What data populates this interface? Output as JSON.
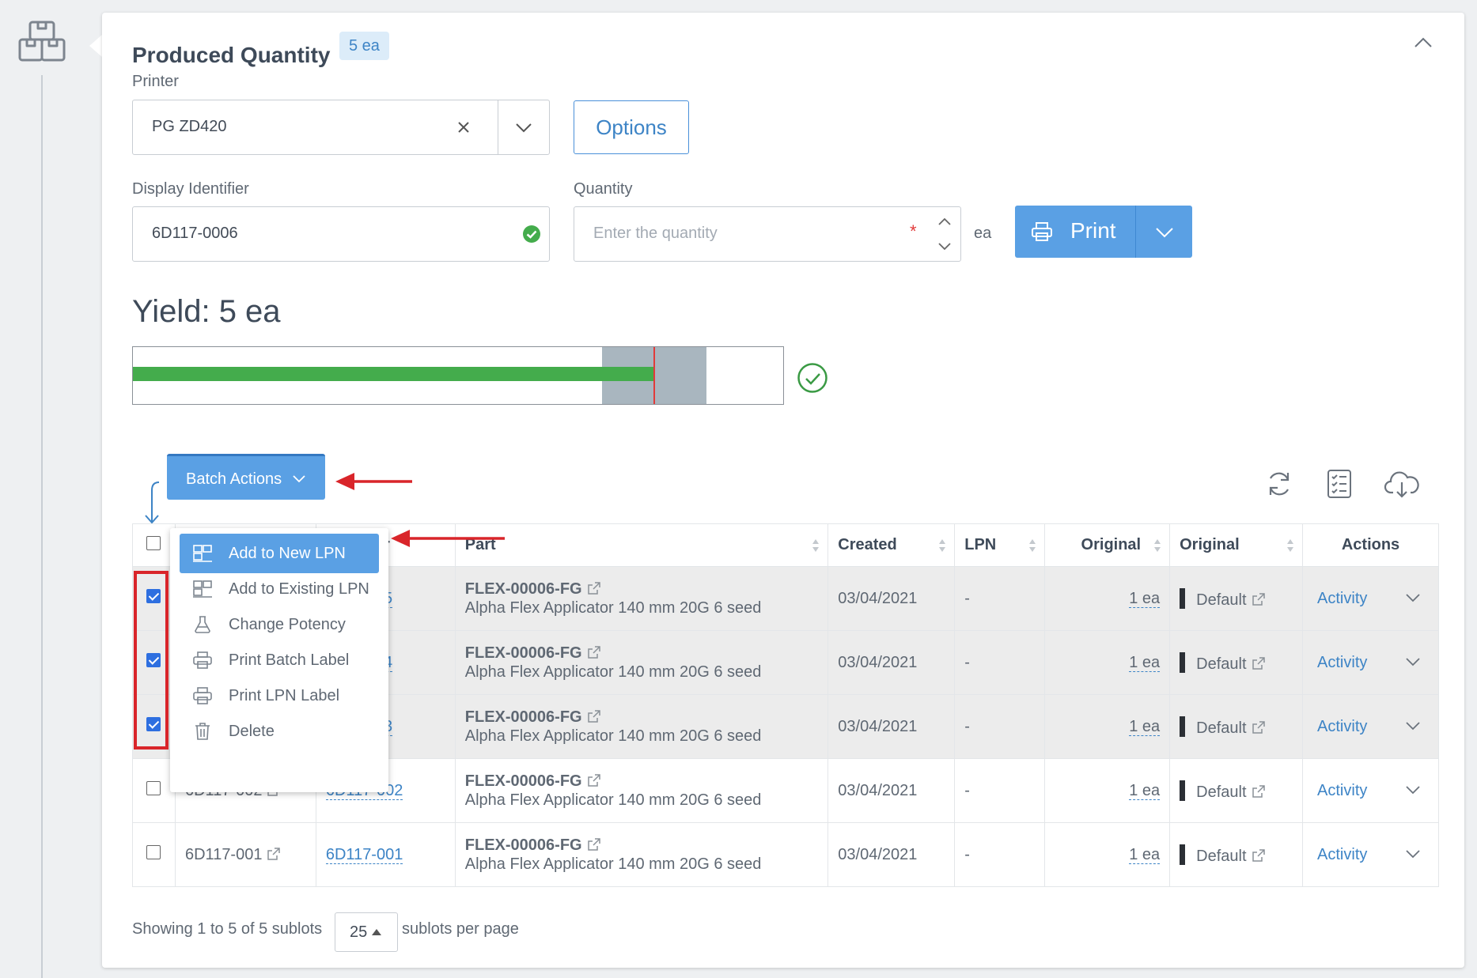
{
  "header": {
    "title": "Produced Quantity",
    "badge": "5 ea"
  },
  "printer": {
    "label": "Printer",
    "value": "PG ZD420",
    "options_label": "Options"
  },
  "display_identifier": {
    "label": "Display Identifier",
    "value": "6D117-0006"
  },
  "quantity": {
    "label": "Quantity",
    "placeholder": "Enter the quantity",
    "required_mark": "*",
    "unit": "ea"
  },
  "print_button": {
    "label": "Print"
  },
  "yield": {
    "label": "Yield: 5 ea",
    "progress_fraction": 0.8
  },
  "batch_actions": {
    "label": "Batch Actions",
    "menu": [
      {
        "label": "Add to New LPN",
        "icon": "lpn-icon"
      },
      {
        "label": "Add to Existing LPN",
        "icon": "lpn-icon"
      },
      {
        "label": "Change Potency",
        "icon": "flask-icon"
      },
      {
        "label": "Print Batch Label",
        "icon": "printer-icon"
      },
      {
        "label": "Print LPN Label",
        "icon": "printer-icon"
      },
      {
        "label": "Delete",
        "icon": "trash-icon"
      }
    ]
  },
  "table": {
    "headers": [
      "",
      "",
      "er",
      "Part",
      "Created",
      "LPN",
      "Original",
      "Original",
      "Actions"
    ],
    "rows": [
      {
        "checked": true,
        "id": "",
        "lot": "05",
        "part_no": "FLEX-00006-FG",
        "part_desc": "Alpha Flex Applicator 140 mm 20G 6 seed",
        "created": "03/04/2021",
        "lpn": "-",
        "orig_qty": "1 ea",
        "orig_loc": "Default",
        "action": "Activity"
      },
      {
        "checked": true,
        "id": "",
        "lot": "04",
        "part_no": "FLEX-00006-FG",
        "part_desc": "Alpha Flex Applicator 140 mm 20G 6 seed",
        "created": "03/04/2021",
        "lpn": "-",
        "orig_qty": "1 ea",
        "orig_loc": "Default",
        "action": "Activity"
      },
      {
        "checked": true,
        "id": "",
        "lot": "03",
        "part_no": "FLEX-00006-FG",
        "part_desc": "Alpha Flex Applicator 140 mm 20G 6 seed",
        "created": "03/04/2021",
        "lpn": "-",
        "orig_qty": "1 ea",
        "orig_loc": "Default",
        "action": "Activity"
      },
      {
        "checked": false,
        "id": "6D117-002",
        "lot": "6D117-002",
        "part_no": "FLEX-00006-FG",
        "part_desc": "Alpha Flex Applicator 140 mm 20G 6 seed",
        "created": "03/04/2021",
        "lpn": "-",
        "orig_qty": "1 ea",
        "orig_loc": "Default",
        "action": "Activity"
      },
      {
        "checked": false,
        "id": "6D117-001",
        "lot": "6D117-001",
        "part_no": "FLEX-00006-FG",
        "part_desc": "Alpha Flex Applicator 140 mm 20G 6 seed",
        "created": "03/04/2021",
        "lpn": "-",
        "orig_qty": "1 ea",
        "orig_loc": "Default",
        "action": "Activity"
      }
    ]
  },
  "footer": {
    "showing": "Showing 1 to 5 of 5 sublots",
    "per_page_value": "25",
    "per_page_suffix": "sublots per page"
  },
  "colors": {
    "accent": "#5aa0e4",
    "link": "#3d84c6",
    "progress_green": "#44ac4c",
    "annotation_red": "#d9252a"
  }
}
